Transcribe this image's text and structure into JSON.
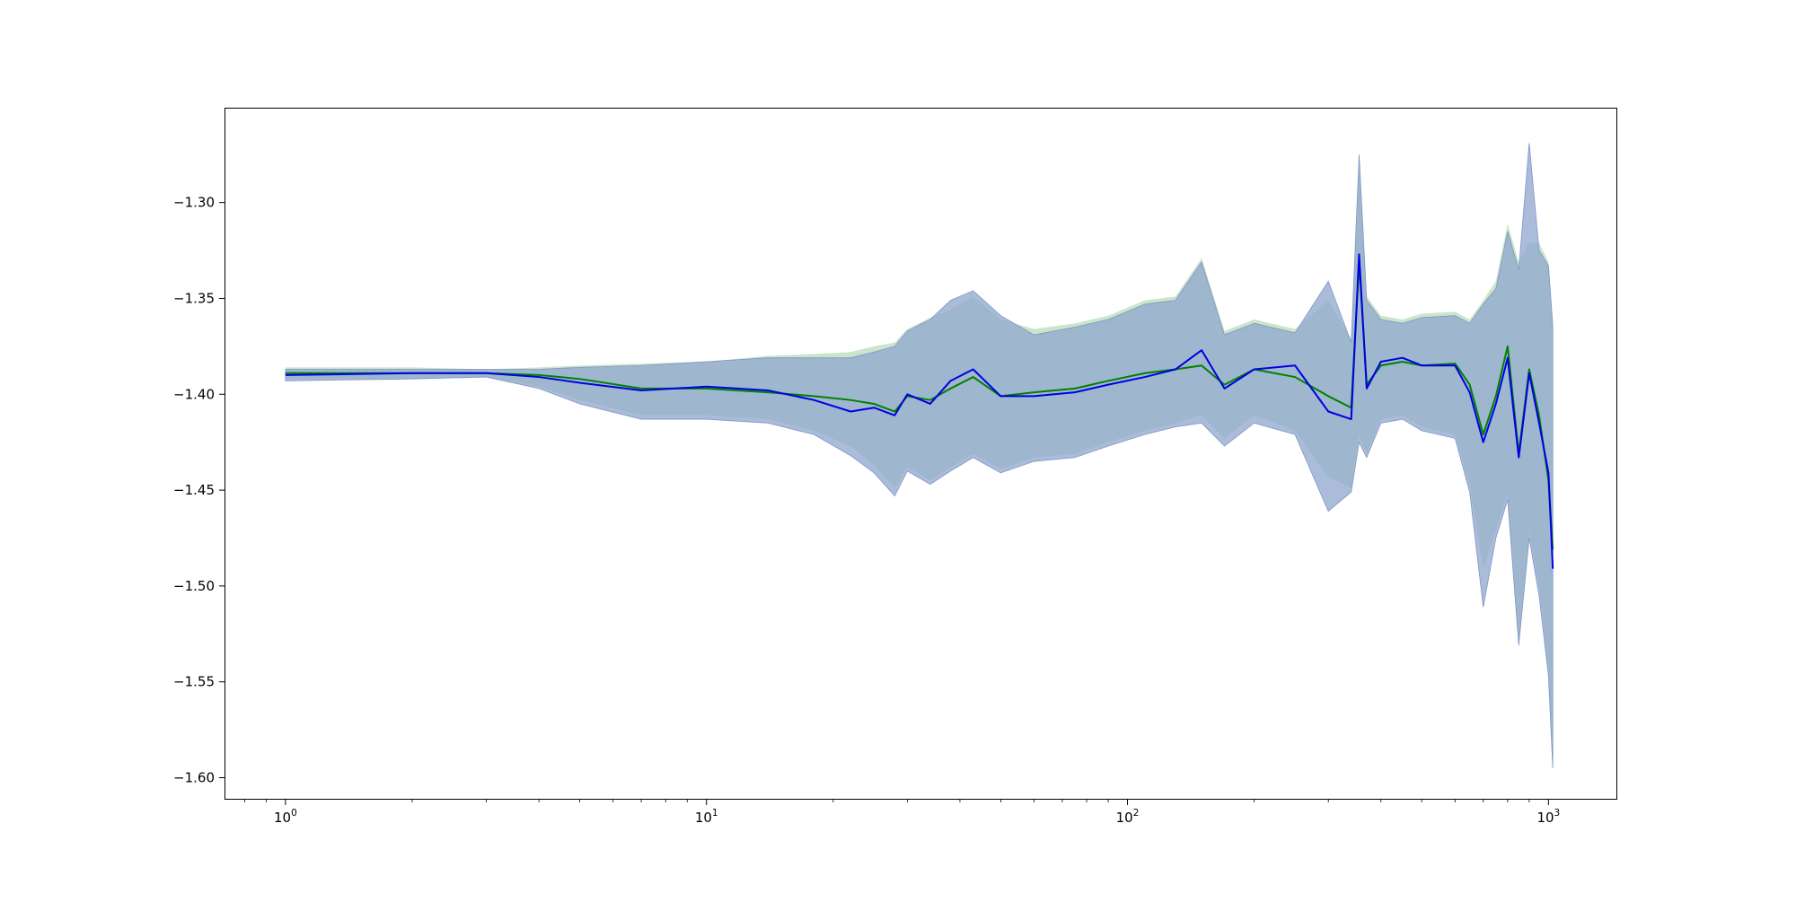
{
  "chart_data": {
    "type": "area",
    "title": "",
    "xlabel": "",
    "ylabel": "",
    "xscale": "log",
    "xlim": [
      0.72,
      1450
    ],
    "ylim": [
      -1.611,
      -1.251
    ],
    "grid": false,
    "legend": "none",
    "x_ticks": [
      {
        "value": 1,
        "base": "10",
        "exp": "0"
      },
      {
        "value": 10,
        "base": "10",
        "exp": "1"
      },
      {
        "value": 100,
        "base": "10",
        "exp": "2"
      },
      {
        "value": 1000,
        "base": "10",
        "exp": "3"
      }
    ],
    "y_ticks": [
      {
        "value": -1.3,
        "label": "−1.30"
      },
      {
        "value": -1.35,
        "label": "−1.35"
      },
      {
        "value": -1.4,
        "label": "−1.40"
      },
      {
        "value": -1.45,
        "label": "−1.45"
      },
      {
        "value": -1.5,
        "label": "−1.50"
      },
      {
        "value": -1.55,
        "label": "−1.55"
      },
      {
        "value": -1.6,
        "label": "−1.60"
      }
    ],
    "series": [
      {
        "color": "#008000",
        "band_color": "#b9dcb9",
        "x": [
          1,
          2,
          3,
          4,
          5,
          7,
          10,
          14,
          18,
          22,
          25,
          28,
          30,
          34,
          38,
          43,
          50,
          60,
          75,
          90,
          110,
          130,
          150,
          170,
          200,
          250,
          300,
          340,
          355,
          370,
          400,
          450,
          500,
          600,
          650,
          700,
          750,
          800,
          850,
          900,
          950,
          1000,
          1024
        ],
        "y": [
          -1.389,
          -1.389,
          -1.389,
          -1.39,
          -1.392,
          -1.397,
          -1.397,
          -1.399,
          -1.401,
          -1.403,
          -1.405,
          -1.409,
          -1.401,
          -1.403,
          -1.397,
          -1.391,
          -1.401,
          -1.399,
          -1.397,
          -1.393,
          -1.389,
          -1.387,
          -1.385,
          -1.395,
          -1.387,
          -1.391,
          -1.401,
          -1.407,
          -1.331,
          -1.395,
          -1.385,
          -1.383,
          -1.385,
          -1.384,
          -1.395,
          -1.421,
          -1.401,
          -1.375,
          -1.431,
          -1.387,
          -1.411,
          -1.445,
          -1.481
        ],
        "lower": [
          -1.392,
          -1.392,
          -1.391,
          -1.396,
          -1.403,
          -1.411,
          -1.411,
          -1.413,
          -1.419,
          -1.427,
          -1.437,
          -1.449,
          -1.438,
          -1.445,
          -1.438,
          -1.431,
          -1.439,
          -1.433,
          -1.431,
          -1.425,
          -1.419,
          -1.415,
          -1.411,
          -1.423,
          -1.411,
          -1.419,
          -1.443,
          -1.449,
          -1.421,
          -1.431,
          -1.413,
          -1.411,
          -1.417,
          -1.421,
          -1.447,
          -1.491,
          -1.471,
          -1.451,
          -1.529,
          -1.471,
          -1.501,
          -1.543,
          -1.589
        ],
        "upper": [
          -1.386,
          -1.386,
          -1.387,
          -1.386,
          -1.385,
          -1.384,
          -1.383,
          -1.38,
          -1.379,
          -1.378,
          -1.375,
          -1.373,
          -1.366,
          -1.36,
          -1.356,
          -1.349,
          -1.361,
          -1.366,
          -1.363,
          -1.359,
          -1.351,
          -1.349,
          -1.329,
          -1.367,
          -1.361,
          -1.366,
          -1.351,
          -1.371,
          -1.281,
          -1.349,
          -1.359,
          -1.361,
          -1.358,
          -1.357,
          -1.361,
          -1.351,
          -1.341,
          -1.311,
          -1.331,
          -1.321,
          -1.321,
          -1.331,
          -1.361
        ]
      },
      {
        "color": "#0000e6",
        "band_color": "#c8c8f5",
        "x": [
          1,
          2,
          3,
          4,
          5,
          7,
          10,
          14,
          18,
          22,
          25,
          28,
          30,
          34,
          38,
          43,
          50,
          60,
          75,
          90,
          110,
          130,
          150,
          170,
          200,
          250,
          300,
          340,
          355,
          370,
          400,
          450,
          500,
          600,
          650,
          700,
          750,
          800,
          850,
          900,
          950,
          1000,
          1024
        ],
        "y": [
          -1.39,
          -1.389,
          -1.389,
          -1.391,
          -1.394,
          -1.398,
          -1.396,
          -1.398,
          -1.403,
          -1.409,
          -1.407,
          -1.411,
          -1.4,
          -1.405,
          -1.393,
          -1.387,
          -1.401,
          -1.401,
          -1.399,
          -1.395,
          -1.391,
          -1.387,
          -1.377,
          -1.397,
          -1.387,
          -1.385,
          -1.409,
          -1.413,
          -1.327,
          -1.397,
          -1.383,
          -1.381,
          -1.385,
          -1.385,
          -1.399,
          -1.425,
          -1.405,
          -1.381,
          -1.433,
          -1.389,
          -1.415,
          -1.441,
          -1.491
        ],
        "lower": [
          -1.393,
          -1.392,
          -1.391,
          -1.397,
          -1.405,
          -1.413,
          -1.413,
          -1.415,
          -1.421,
          -1.432,
          -1.441,
          -1.453,
          -1.44,
          -1.447,
          -1.44,
          -1.433,
          -1.441,
          -1.435,
          -1.433,
          -1.427,
          -1.421,
          -1.417,
          -1.415,
          -1.427,
          -1.415,
          -1.421,
          -1.461,
          -1.451,
          -1.425,
          -1.433,
          -1.415,
          -1.413,
          -1.419,
          -1.423,
          -1.451,
          -1.511,
          -1.475,
          -1.455,
          -1.531,
          -1.475,
          -1.505,
          -1.547,
          -1.595
        ],
        "upper": [
          -1.387,
          -1.387,
          -1.387,
          -1.387,
          -1.386,
          -1.385,
          -1.383,
          -1.381,
          -1.381,
          -1.381,
          -1.378,
          -1.375,
          -1.367,
          -1.361,
          -1.351,
          -1.346,
          -1.359,
          -1.369,
          -1.365,
          -1.361,
          -1.353,
          -1.351,
          -1.331,
          -1.369,
          -1.363,
          -1.368,
          -1.341,
          -1.373,
          -1.275,
          -1.351,
          -1.361,
          -1.363,
          -1.36,
          -1.359,
          -1.363,
          -1.353,
          -1.345,
          -1.315,
          -1.335,
          -1.269,
          -1.325,
          -1.333,
          -1.365
        ]
      }
    ]
  }
}
